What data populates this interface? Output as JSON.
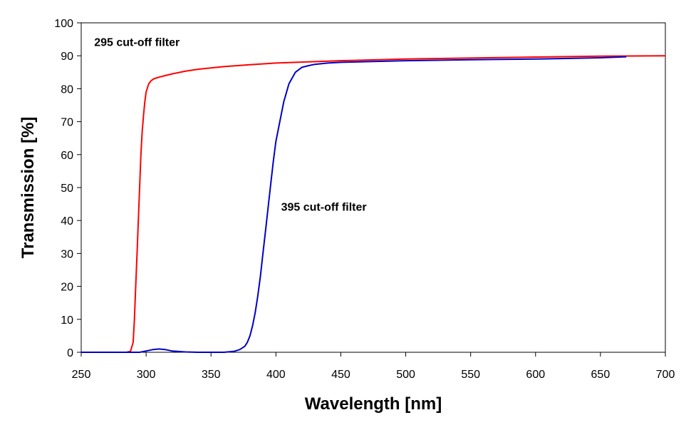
{
  "chart_data": {
    "type": "line",
    "title": "",
    "xlabel": "Wavelength [nm]",
    "ylabel": "Transmission [%]",
    "xlim": [
      250,
      700
    ],
    "ylim": [
      0,
      100
    ],
    "xticks": [
      250,
      300,
      350,
      400,
      450,
      500,
      550,
      600,
      650,
      700
    ],
    "yticks": [
      0,
      10,
      20,
      30,
      40,
      50,
      60,
      70,
      80,
      90,
      100
    ],
    "grid": false,
    "series": [
      {
        "name": "295 cut-off filter",
        "color": "#ff0000",
        "x": [
          250,
          285,
          288,
          290,
          291,
          292,
          293,
          294,
          295,
          296,
          297,
          298,
          299,
          300,
          302,
          304,
          306,
          310,
          315,
          320,
          330,
          340,
          350,
          360,
          380,
          400,
          450,
          500,
          550,
          600,
          650,
          700
        ],
        "y": [
          0,
          0,
          0.3,
          3,
          10,
          20,
          30,
          40,
          50,
          60,
          67,
          72,
          76,
          79,
          81.5,
          82.5,
          83,
          83.5,
          84,
          84.5,
          85.3,
          85.9,
          86.3,
          86.7,
          87.3,
          87.8,
          88.5,
          89,
          89.3,
          89.6,
          89.9,
          90
        ]
      },
      {
        "name": "395 cut-off filter",
        "color": "#0000c8",
        "x": [
          250,
          295,
          300,
          305,
          310,
          315,
          320,
          330,
          340,
          350,
          360,
          368,
          372,
          376,
          378,
          380,
          382,
          384,
          386,
          388,
          390,
          392,
          394,
          396,
          398,
          400,
          403,
          406,
          410,
          415,
          420,
          425,
          430,
          440,
          450,
          500,
          550,
          600,
          650,
          670
        ],
        "y": [
          0,
          0,
          0.4,
          0.8,
          1,
          0.8,
          0.4,
          0.1,
          0,
          0,
          0,
          0.3,
          0.8,
          1.8,
          3,
          5,
          8,
          12,
          17,
          23,
          30,
          37,
          44,
          51,
          58,
          64,
          70,
          76,
          81.5,
          85,
          86.5,
          87,
          87.4,
          87.8,
          88,
          88.5,
          88.8,
          89,
          89.4,
          89.7
        ]
      }
    ],
    "annotations": [
      {
        "text": "295 cut-off filter",
        "x": 260,
        "y": 93
      },
      {
        "text": "395 cut-off filter",
        "x": 404,
        "y": 43
      }
    ]
  }
}
